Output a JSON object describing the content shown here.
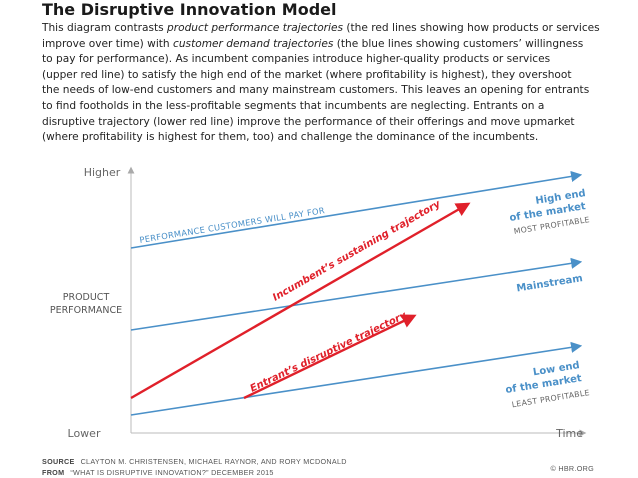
{
  "title": "The Disruptive Innovation Model",
  "description": {
    "lines": [
      [
        {
          "t": "This diagram contrasts "
        },
        {
          "t": "product performance trajectories",
          "i": true
        },
        {
          "t": " (the red lines showing how products or services"
        }
      ],
      [
        {
          "t": "improve over time) with "
        },
        {
          "t": "customer demand trajectories",
          "i": true
        },
        {
          "t": " (the blue lines showing customers’ willingness"
        }
      ],
      [
        {
          "t": "to pay for performance). As incumbent companies introduce higher-quality products or services"
        }
      ],
      [
        {
          "t": "(upper red line) to satisfy the high end of the market (where profitability is highest), they overshoot"
        }
      ],
      [
        {
          "t": "the needs of low-end customers and many mainstream customers. This leaves an opening for entrants"
        }
      ],
      [
        {
          "t": "to find footholds in the less-profitable segments that incumbents are neglecting. Entrants on a"
        }
      ],
      [
        {
          "t": "disruptive trajectory (lower red line) improve the performance of their offerings and move upmarket"
        }
      ],
      [
        {
          "t": "(where profitability is highest for them, too) and challenge the dominance of the incumbents."
        }
      ]
    ]
  },
  "axis": {
    "y_top": "Higher",
    "y_bottom": "Lower",
    "y_label_line1": "PRODUCT",
    "y_label_line2": "PERFORMANCE",
    "x_label": "Time"
  },
  "lines": {
    "performance_pay": "PERFORMANCE CUSTOMERS WILL PAY FOR",
    "sustaining": "Incumbent’s sustaining trajectory",
    "disruptive": "Entrant’s disruptive trajectory"
  },
  "labels": {
    "high_end_1": "High end",
    "high_end_2": "of the market",
    "most_profitable": "MOST PROFITABLE",
    "mainstream": "Mainstream",
    "low_end_1": "Low end",
    "low_end_2": "of the market",
    "least_profitable": "LEAST PROFITABLE"
  },
  "colors": {
    "blue": "#4a90c8",
    "red": "#e0202a",
    "axis": "#bbbbbb",
    "gray_text": "#666666"
  },
  "footer": {
    "source_label": "SOURCE",
    "source_text": "CLAYTON M. CHRISTENSEN, MICHAEL RAYNOR, AND RORY MCDONALD",
    "from_label": "FROM",
    "from_text": "“WHAT IS DISRUPTIVE INNOVATION?” DECEMBER 2015",
    "credit": "© HBR.ORG"
  }
}
